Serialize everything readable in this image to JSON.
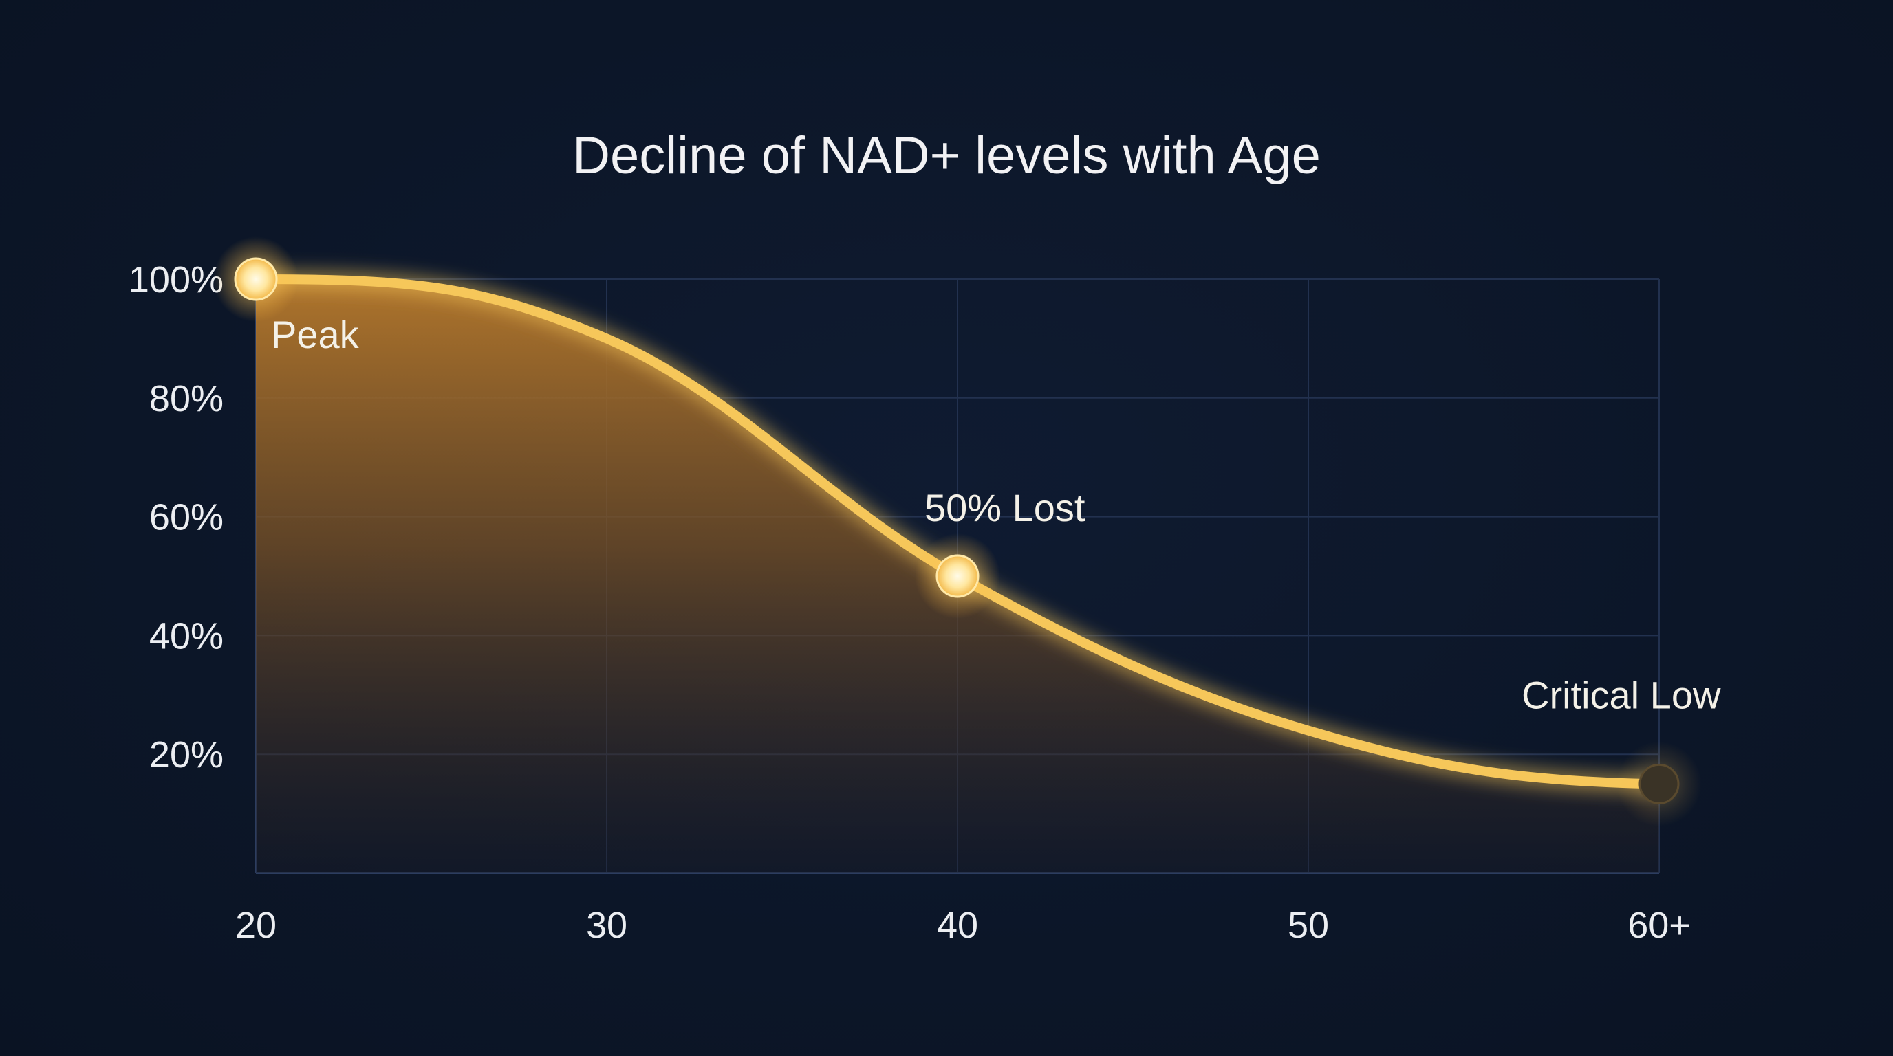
{
  "chart_data": {
    "type": "area",
    "title": "Decline of NAD+ levels with Age",
    "xlabel": "",
    "ylabel": "",
    "categories": [
      "20",
      "30",
      "40",
      "50",
      "60+"
    ],
    "x_ticks": [
      "20",
      "30",
      "40",
      "50",
      "60+"
    ],
    "y_ticks": [
      "20%",
      "40%",
      "60%",
      "80%",
      "100%"
    ],
    "ylim": [
      0,
      100
    ],
    "grid": true,
    "series": [
      {
        "values": [
          100,
          90,
          50,
          24,
          15
        ],
        "color": "#f6c75a"
      }
    ],
    "annotations": [
      {
        "text": "Peak",
        "x": "20",
        "y": 100
      },
      {
        "text": "50% Lost",
        "x": "40",
        "y": 50
      },
      {
        "text": "Critical Low",
        "x": "60+",
        "y": 15
      }
    ],
    "colors": {
      "background": "#0c1628",
      "line": "#f6c75a",
      "fill_top": "#b87a2c",
      "grid": "#22314f"
    }
  }
}
